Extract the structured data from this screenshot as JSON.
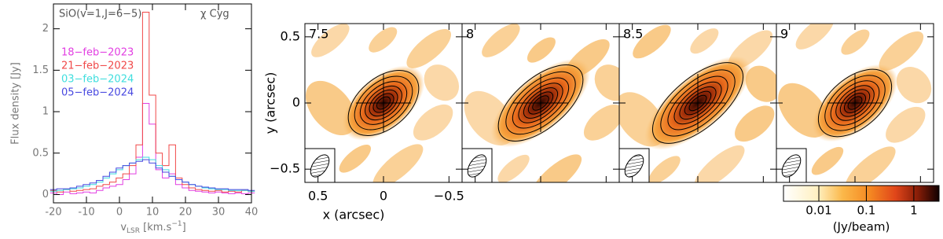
{
  "chart_data": [
    {
      "type": "line",
      "step": true,
      "title": "SiO(v=1,J=6−5)",
      "annotation": "χ Cyg",
      "x_label": {
        "base": "v",
        "sub": "LSR",
        "unit": " [km.s",
        "sup": "−1",
        "end": "]"
      },
      "y_label": "Flux density [Jy]",
      "x": [
        -20,
        -18,
        -16,
        -14,
        -12,
        -10,
        -8,
        -6,
        -4,
        -2,
        0,
        2,
        4,
        6,
        8,
        10,
        12,
        14,
        16,
        18,
        20,
        22,
        24,
        26,
        28,
        30,
        32,
        34,
        36,
        38,
        40
      ],
      "series": [
        {
          "name": "18−feb−2023",
          "color": "#e23fe2",
          "values": [
            0.02,
            0.0,
            0.03,
            0.01,
            0.02,
            0.03,
            0.02,
            0.05,
            0.08,
            0.1,
            0.12,
            0.18,
            0.25,
            0.45,
            1.1,
            0.85,
            0.3,
            0.2,
            0.25,
            0.12,
            0.08,
            0.05,
            0.04,
            0.03,
            0.02,
            0.03,
            0.02,
            0.01,
            0.02,
            0.01,
            0.02
          ]
        },
        {
          "name": "21−feb−2023",
          "color": "#f04848",
          "values": [
            0.05,
            0.03,
            0.06,
            0.04,
            0.05,
            0.06,
            0.07,
            0.1,
            0.12,
            0.15,
            0.2,
            0.25,
            0.35,
            0.6,
            2.2,
            1.2,
            0.5,
            0.35,
            0.6,
            0.2,
            0.12,
            0.08,
            0.06,
            0.05,
            0.04,
            0.05,
            0.03,
            0.04,
            0.03,
            0.05,
            0.04
          ]
        },
        {
          "name": "03−feb−2024",
          "color": "#3fdede",
          "values": [
            0.04,
            0.05,
            0.06,
            0.07,
            0.08,
            0.1,
            0.12,
            0.15,
            0.2,
            0.25,
            0.3,
            0.35,
            0.38,
            0.42,
            0.45,
            0.42,
            0.35,
            0.3,
            0.22,
            0.18,
            0.15,
            0.12,
            0.1,
            0.08,
            0.07,
            0.06,
            0.06,
            0.05,
            0.05,
            0.05,
            0.04
          ]
        },
        {
          "name": "05−feb−2024",
          "color": "#4848e0",
          "values": [
            0.06,
            0.07,
            0.07,
            0.08,
            0.1,
            0.12,
            0.14,
            0.17,
            0.22,
            0.27,
            0.32,
            0.35,
            0.38,
            0.4,
            0.42,
            0.38,
            0.32,
            0.27,
            0.22,
            0.18,
            0.15,
            0.12,
            0.1,
            0.09,
            0.08,
            0.07,
            0.07,
            0.06,
            0.06,
            0.06,
            0.05
          ]
        }
      ],
      "xlim": [
        -20,
        40
      ],
      "xticks": [
        -20,
        -10,
        0,
        10,
        20,
        30,
        40
      ],
      "ylim": [
        -0.1,
        2.3
      ],
      "yticks": [
        0,
        0.5,
        1,
        1.5,
        2
      ]
    },
    {
      "type": "channel-map",
      "panels": [
        7.5,
        8,
        8.5,
        9
      ],
      "x_label": "x (arcsec)",
      "y_label": "y (arcsec)",
      "xlim": [
        0.6,
        -0.6
      ],
      "xticks": [
        0.5,
        0,
        {
          "value": -0.5,
          "label": "−0.5"
        }
      ],
      "ylim": [
        -0.6,
        0.6
      ],
      "yticks": [
        0.5,
        0,
        {
          "value": -0.5,
          "label": "−0.5"
        }
      ],
      "colorbar": {
        "label": "(Jy/beam)",
        "log": true,
        "clim": [
          0.0018,
          3.4
        ],
        "ticks": [
          0.01,
          0.1,
          1
        ]
      }
    }
  ]
}
